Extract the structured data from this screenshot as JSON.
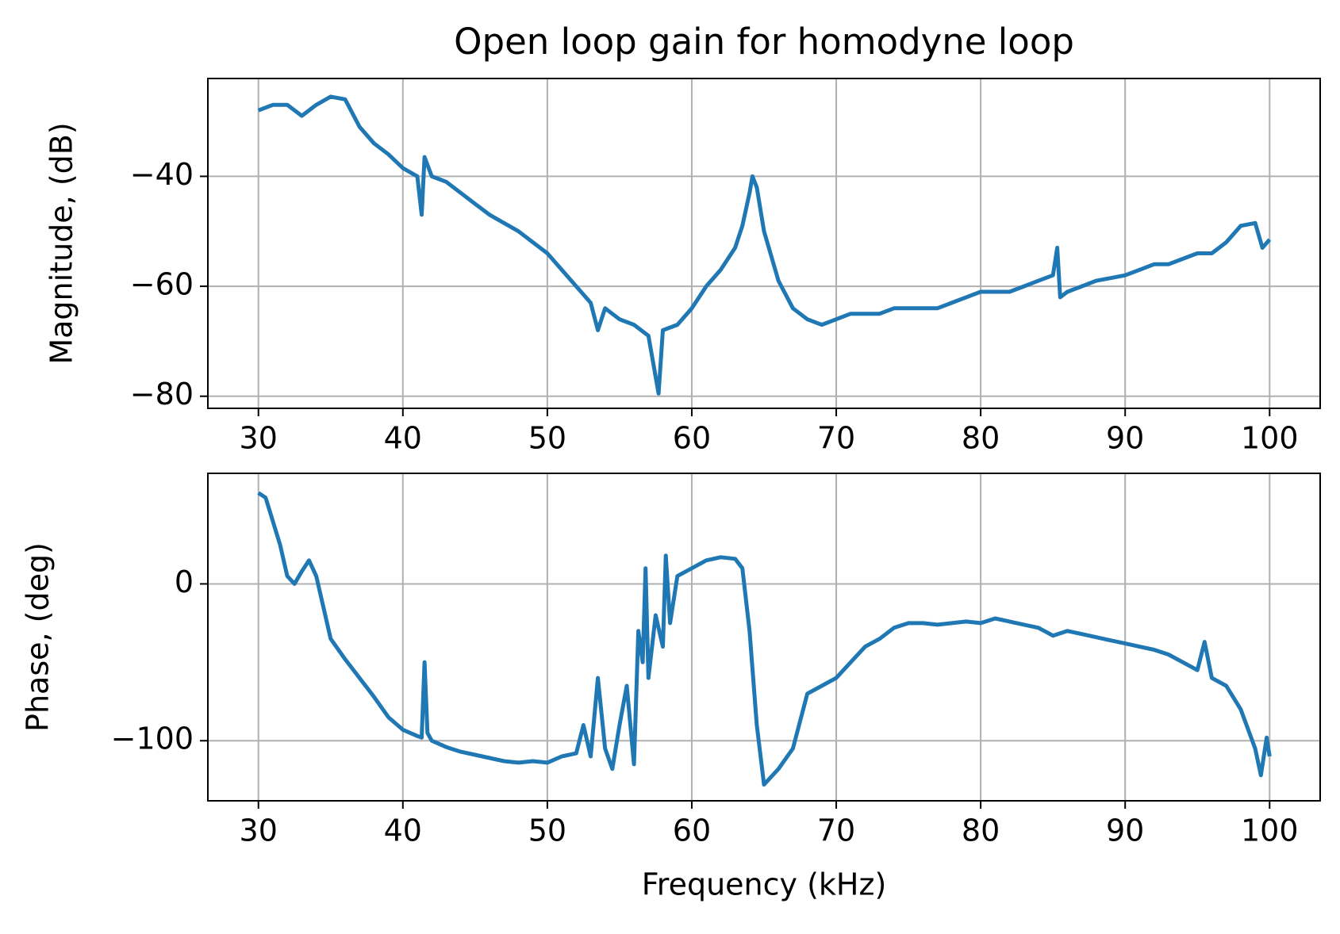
{
  "chart_data": [
    {
      "type": "line",
      "title": "Open loop gain for homodyne loop",
      "ylabel": "Magnitude, (dB)",
      "color": "#1f77b4",
      "grid": true,
      "xlim": [
        26.5,
        103.5
      ],
      "ylim": [
        -82.2,
        -22.2
      ],
      "xticks": [
        30,
        40,
        50,
        60,
        70,
        80,
        90,
        100
      ],
      "yticks": [
        {
          "value": -80,
          "label": "−80"
        },
        {
          "value": -60,
          "label": "−60"
        },
        {
          "value": -40,
          "label": "−40"
        }
      ],
      "x": [
        30,
        31,
        32,
        33,
        34,
        35,
        36,
        37,
        38,
        39,
        40,
        41,
        41.3,
        41.5,
        42,
        43,
        44,
        45,
        46,
        47,
        48,
        49,
        50,
        51,
        52,
        53,
        53.5,
        54,
        55,
        56,
        57,
        57.7,
        58,
        59,
        60,
        61,
        62,
        63,
        63.5,
        64,
        64.2,
        64.5,
        65,
        66,
        67,
        68,
        69,
        70,
        71,
        72,
        73,
        74,
        75,
        76,
        77,
        78,
        79,
        80,
        81,
        82,
        83,
        84,
        85,
        85.3,
        85.5,
        86,
        87,
        88,
        89,
        90,
        91,
        92,
        93,
        94,
        95,
        96,
        97,
        98,
        99,
        99.5,
        100
      ],
      "values": [
        -28,
        -27,
        -27,
        -29,
        -27,
        -25.5,
        -26,
        -31,
        -34,
        -36,
        -38.5,
        -40,
        -47,
        -36.5,
        -40,
        -41,
        -43,
        -45,
        -47,
        -48.5,
        -50,
        -52,
        -54,
        -57,
        -60,
        -63,
        -68,
        -64,
        -66,
        -67,
        -69,
        -79.5,
        -68,
        -67,
        -64,
        -60,
        -57,
        -53,
        -49,
        -43,
        -40,
        -42,
        -50,
        -59,
        -64,
        -66,
        -67,
        -66,
        -65,
        -65,
        -65,
        -64,
        -64,
        -64,
        -64,
        -63,
        -62,
        -61,
        -61,
        -61,
        -60,
        -59,
        -58,
        -53,
        -62,
        -61,
        -60,
        -59,
        -58.5,
        -58,
        -57,
        -56,
        -56,
        -55,
        -54,
        -54,
        -52,
        -49,
        -48.5,
        -53,
        -51.5
      ]
    },
    {
      "type": "line",
      "ylabel": "Phase, (deg)",
      "xlabel": "Frequency (kHz)",
      "color": "#1f77b4",
      "grid": true,
      "xlim": [
        26.5,
        103.5
      ],
      "ylim": [
        -138.3,
        70.5
      ],
      "xticks": [
        30,
        40,
        50,
        60,
        70,
        80,
        90,
        100
      ],
      "yticks": [
        {
          "value": -100,
          "label": "−100"
        },
        0
      ],
      "x": [
        30,
        30.5,
        31,
        31.5,
        32,
        32.5,
        33,
        33.5,
        34,
        34.5,
        35,
        36,
        37,
        38,
        39,
        40,
        41,
        41.3,
        41.5,
        41.7,
        42,
        43,
        44,
        45,
        46,
        47,
        48,
        49,
        50,
        51,
        52,
        52.5,
        53,
        53.5,
        54,
        54.5,
        55,
        55.5,
        56,
        56.3,
        56.6,
        56.8,
        57,
        57.5,
        58,
        58.2,
        58.5,
        59,
        60,
        61,
        62,
        63,
        63.5,
        64,
        64.5,
        65,
        66,
        67,
        68,
        69,
        70,
        71,
        72,
        73,
        74,
        75,
        76,
        77,
        78,
        79,
        80,
        81,
        82,
        83,
        84,
        85,
        86,
        87,
        88,
        89,
        90,
        91,
        92,
        93,
        94,
        95,
        95.5,
        96,
        97,
        98,
        99,
        99.4,
        99.8,
        100
      ],
      "values": [
        58,
        55,
        40,
        25,
        5,
        0,
        8,
        15,
        5,
        -15,
        -35,
        -48,
        -60,
        -72,
        -85,
        -93,
        -97,
        -98,
        -50,
        -95,
        -100,
        -104,
        -107,
        -109,
        -111,
        -113,
        -114,
        -113,
        -114,
        -110,
        -108,
        -90,
        -110,
        -60,
        -105,
        -118,
        -90,
        -65,
        -115,
        -30,
        -50,
        10,
        -60,
        -20,
        -40,
        18,
        -25,
        5,
        10,
        15,
        17,
        16,
        10,
        -30,
        -90,
        -128,
        -118,
        -105,
        -70,
        -65,
        -60,
        -50,
        -40,
        -35,
        -28,
        -25,
        -25,
        -26,
        -25,
        -24,
        -25,
        -22,
        -24,
        -26,
        -28,
        -33,
        -30,
        -32,
        -34,
        -36,
        -38,
        -40,
        -42,
        -45,
        -50,
        -55,
        -37,
        -60,
        -65,
        -80,
        -105,
        -122,
        -98,
        -110
      ]
    }
  ]
}
